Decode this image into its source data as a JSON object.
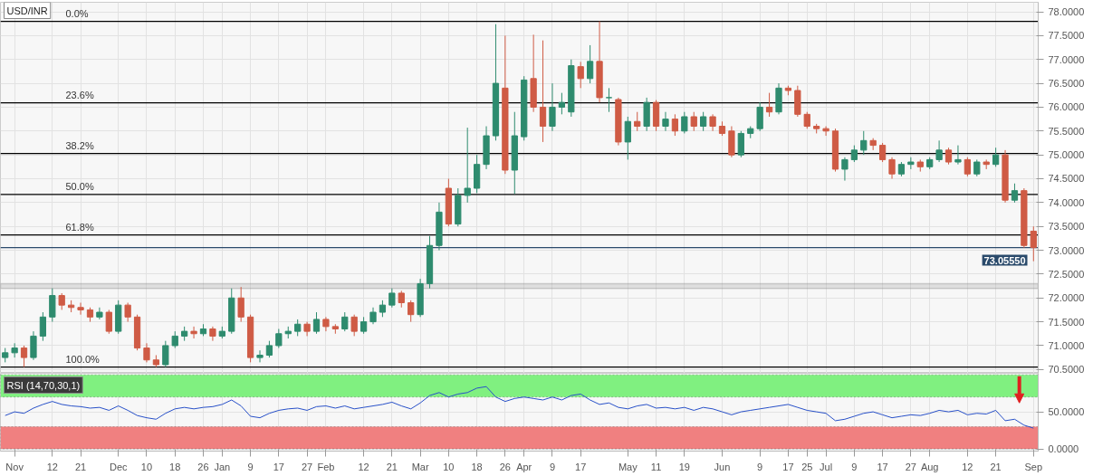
{
  "chart_data": [
    {
      "type": "candlestick",
      "title": "USD/INR",
      "categories": [
        null,
        "Nov",
        null,
        null,
        null,
        "12",
        null,
        null,
        "21",
        null,
        null,
        null,
        "Dec",
        null,
        null,
        "10",
        null,
        null,
        "18",
        null,
        null,
        "26",
        null,
        "Jan",
        null,
        null,
        "9",
        null,
        null,
        "17",
        null,
        null,
        "27",
        null,
        "Feb",
        null,
        null,
        null,
        "12",
        null,
        null,
        "21",
        null,
        null,
        "Mar",
        null,
        null,
        "10",
        null,
        null,
        "18",
        null,
        null,
        "26",
        null,
        "Apr",
        null,
        null,
        "9",
        null,
        null,
        "17",
        null,
        null,
        null,
        null,
        "May",
        null,
        null,
        "11",
        null,
        null,
        "19",
        null,
        null,
        null,
        "Jun",
        null,
        null,
        null,
        "9",
        null,
        null,
        "17",
        null,
        "25",
        null,
        "Jul",
        null,
        null,
        "9",
        null,
        null,
        "17",
        null,
        null,
        "27",
        null,
        "Aug",
        null,
        null,
        null,
        "12",
        null,
        null,
        "21",
        null,
        null,
        null,
        "Sep"
      ],
      "ohlc": [
        [
          70.75,
          70.95,
          70.65,
          70.85
        ],
        [
          70.85,
          71.05,
          70.75,
          70.95
        ],
        [
          70.95,
          71.0,
          70.55,
          70.75
        ],
        [
          70.75,
          71.3,
          70.7,
          71.2
        ],
        [
          71.2,
          71.7,
          71.1,
          71.6
        ],
        [
          71.6,
          72.2,
          71.5,
          72.05
        ],
        [
          72.05,
          72.1,
          71.75,
          71.85
        ],
        [
          71.85,
          71.95,
          71.7,
          71.8
        ],
        [
          71.8,
          71.9,
          71.65,
          71.75
        ],
        [
          71.75,
          71.8,
          71.5,
          71.6
        ],
        [
          71.6,
          71.8,
          71.55,
          71.7
        ],
        [
          71.7,
          71.75,
          71.25,
          71.3
        ],
        [
          71.3,
          71.95,
          71.25,
          71.85
        ],
        [
          71.85,
          71.9,
          71.5,
          71.6
        ],
        [
          71.6,
          71.65,
          70.9,
          70.95
        ],
        [
          70.95,
          71.05,
          70.65,
          70.7
        ],
        [
          70.7,
          70.8,
          70.55,
          70.6
        ],
        [
          70.6,
          71.1,
          70.55,
          71.0
        ],
        [
          71.0,
          71.3,
          70.95,
          71.2
        ],
        [
          71.2,
          71.4,
          71.1,
          71.3
        ],
        [
          71.3,
          71.4,
          71.15,
          71.25
        ],
        [
          71.25,
          71.45,
          71.2,
          71.35
        ],
        [
          71.35,
          71.4,
          71.1,
          71.2
        ],
        [
          71.2,
          71.4,
          71.15,
          71.3
        ],
        [
          71.3,
          72.2,
          71.25,
          72.0
        ],
        [
          72.0,
          72.23,
          71.5,
          71.6
        ],
        [
          71.6,
          71.65,
          70.65,
          70.75
        ],
        [
          70.75,
          70.9,
          70.65,
          70.8
        ],
        [
          70.8,
          71.1,
          70.75,
          71.0
        ],
        [
          71.0,
          71.35,
          70.95,
          71.25
        ],
        [
          71.25,
          71.4,
          71.15,
          71.3
        ],
        [
          71.3,
          71.55,
          71.2,
          71.45
        ],
        [
          71.45,
          71.5,
          71.2,
          71.3
        ],
        [
          71.3,
          71.7,
          71.25,
          71.55
        ],
        [
          71.55,
          71.6,
          71.3,
          71.4
        ],
        [
          71.4,
          71.45,
          71.25,
          71.35
        ],
        [
          71.35,
          71.7,
          71.3,
          71.6
        ],
        [
          71.6,
          71.65,
          71.2,
          71.3
        ],
        [
          71.3,
          71.6,
          71.25,
          71.5
        ],
        [
          71.5,
          71.8,
          71.45,
          71.7
        ],
        [
          71.7,
          71.95,
          71.6,
          71.85
        ],
        [
          71.85,
          72.2,
          71.8,
          72.1
        ],
        [
          72.1,
          72.15,
          71.8,
          71.9
        ],
        [
          71.9,
          71.95,
          71.5,
          71.65
        ],
        [
          71.65,
          72.4,
          71.6,
          72.3
        ],
        [
          72.3,
          73.3,
          72.2,
          73.1
        ],
        [
          73.1,
          74.0,
          73.0,
          73.8
        ],
        [
          74.3,
          74.5,
          73.5,
          73.55
        ],
        [
          73.55,
          74.3,
          73.5,
          74.15
        ],
        [
          74.15,
          75.57,
          74.0,
          74.3
        ],
        [
          74.3,
          75.0,
          74.2,
          74.8
        ],
        [
          74.8,
          75.6,
          74.7,
          75.4
        ],
        [
          75.4,
          77.74,
          75.3,
          76.5
        ],
        [
          76.4,
          77.5,
          74.6,
          74.68
        ],
        [
          74.68,
          75.9,
          74.18,
          75.4
        ],
        [
          75.38,
          76.65,
          75.3,
          76.57
        ],
        [
          76.6,
          77.52,
          75.9,
          76.0
        ],
        [
          76.0,
          77.4,
          75.27,
          75.6
        ],
        [
          75.6,
          76.5,
          75.5,
          76.0
        ],
        [
          76.0,
          76.3,
          75.85,
          76.1
        ],
        [
          75.9,
          77.0,
          75.8,
          76.87
        ],
        [
          76.85,
          76.95,
          76.4,
          76.6
        ],
        [
          76.6,
          77.3,
          76.5,
          76.96
        ],
        [
          76.96,
          77.8,
          76.1,
          76.2
        ],
        [
          76.2,
          76.4,
          75.9,
          76.2
        ],
        [
          76.16,
          76.2,
          75.2,
          75.27
        ],
        [
          75.27,
          75.8,
          74.9,
          75.7
        ],
        [
          75.7,
          75.9,
          75.5,
          75.6
        ],
        [
          75.6,
          76.2,
          75.5,
          76.1
        ],
        [
          76.1,
          76.15,
          75.5,
          75.6
        ],
        [
          75.6,
          75.9,
          75.5,
          75.75
        ],
        [
          75.75,
          75.85,
          75.4,
          75.5
        ],
        [
          75.5,
          75.9,
          75.45,
          75.8
        ],
        [
          75.8,
          75.9,
          75.5,
          75.6
        ],
        [
          75.6,
          75.9,
          75.5,
          75.8
        ],
        [
          75.8,
          75.85,
          75.5,
          75.6
        ],
        [
          75.6,
          75.7,
          75.4,
          75.45
        ],
        [
          75.5,
          75.6,
          74.95,
          75.0
        ],
        [
          75.0,
          75.5,
          74.95,
          75.45
        ],
        [
          75.45,
          75.6,
          75.35,
          75.55
        ],
        [
          75.55,
          76.1,
          75.5,
          76.0
        ],
        [
          76.0,
          76.3,
          75.8,
          75.9
        ],
        [
          75.9,
          76.5,
          75.85,
          76.4
        ],
        [
          76.4,
          76.45,
          76.25,
          76.35
        ],
        [
          76.35,
          76.45,
          75.8,
          75.85
        ],
        [
          75.85,
          75.9,
          75.55,
          75.6
        ],
        [
          75.6,
          75.65,
          75.45,
          75.55
        ],
        [
          75.55,
          75.6,
          75.4,
          75.5
        ],
        [
          75.5,
          75.55,
          74.65,
          74.7
        ],
        [
          74.7,
          74.95,
          74.46,
          74.9
        ],
        [
          74.9,
          75.2,
          74.85,
          75.1
        ],
        [
          75.1,
          75.5,
          75.0,
          75.3
        ],
        [
          75.3,
          75.35,
          75.1,
          75.2
        ],
        [
          75.2,
          75.25,
          74.85,
          74.9
        ],
        [
          74.9,
          74.95,
          74.5,
          74.6
        ],
        [
          74.6,
          74.85,
          74.55,
          74.8
        ],
        [
          74.8,
          74.95,
          74.7,
          74.85
        ],
        [
          74.85,
          74.9,
          74.65,
          74.75
        ],
        [
          74.75,
          74.95,
          74.7,
          74.9
        ],
        [
          74.9,
          75.3,
          74.85,
          75.1
        ],
        [
          75.1,
          75.15,
          74.8,
          74.85
        ],
        [
          74.85,
          75.2,
          74.8,
          74.9
        ],
        [
          74.9,
          74.95,
          74.55,
          74.6
        ],
        [
          74.6,
          74.9,
          74.55,
          74.85
        ],
        [
          74.85,
          74.9,
          74.7,
          74.8
        ],
        [
          74.8,
          75.15,
          74.75,
          75.0
        ],
        [
          75.0,
          75.1,
          74.0,
          74.05
        ],
        [
          74.05,
          74.4,
          74.0,
          74.25
        ],
        [
          74.25,
          74.3,
          73.05,
          73.1
        ],
        [
          73.4,
          73.5,
          72.77,
          73.0555
        ]
      ],
      "colors": [
        "#2e8b6e",
        "#2e8b6e",
        "#cf5b45",
        "#2e8b6e",
        "#2e8b6e",
        "#2e8b6e",
        "#cf5b45",
        "#cf5b45",
        "#cf5b45",
        "#cf5b45",
        "#2e8b6e",
        "#cf5b45",
        "#2e8b6e",
        "#cf5b45",
        "#cf5b45",
        "#cf5b45",
        "#cf5b45",
        "#2e8b6e",
        "#2e8b6e",
        "#2e8b6e",
        "#cf5b45",
        "#2e8b6e",
        "#cf5b45",
        "#2e8b6e",
        "#2e8b6e",
        "#cf5b45",
        "#cf5b45",
        "#2e8b6e",
        "#2e8b6e",
        "#2e8b6e",
        "#2e8b6e",
        "#2e8b6e",
        "#cf5b45",
        "#2e8b6e",
        "#cf5b45",
        "#cf5b45",
        "#2e8b6e",
        "#cf5b45",
        "#2e8b6e",
        "#2e8b6e",
        "#2e8b6e",
        "#2e8b6e",
        "#cf5b45",
        "#cf5b45",
        "#2e8b6e",
        "#2e8b6e",
        "#2e8b6e",
        "#cf5b45",
        "#2e8b6e",
        "#2e8b6e",
        "#2e8b6e",
        "#2e8b6e",
        "#2e8b6e",
        "#cf5b45",
        "#2e8b6e",
        "#2e8b6e",
        "#cf5b45",
        "#cf5b45",
        "#2e8b6e",
        "#2e8b6e",
        "#2e8b6e",
        "#cf5b45",
        "#2e8b6e",
        "#cf5b45",
        "#2e8b6e",
        "#cf5b45",
        "#2e8b6e",
        "#cf5b45",
        "#2e8b6e",
        "#cf5b45",
        "#2e8b6e",
        "#cf5b45",
        "#2e8b6e",
        "#cf5b45",
        "#2e8b6e",
        "#cf5b45",
        "#cf5b45",
        "#cf5b45",
        "#2e8b6e",
        "#2e8b6e",
        "#2e8b6e",
        "#cf5b45",
        "#2e8b6e",
        "#cf5b45",
        "#cf5b45",
        "#cf5b45",
        "#cf5b45",
        "#cf5b45",
        "#cf5b45",
        "#2e8b6e",
        "#2e8b6e",
        "#2e8b6e",
        "#cf5b45",
        "#cf5b45",
        "#cf5b45",
        "#2e8b6e",
        "#2e8b6e",
        "#cf5b45",
        "#2e8b6e",
        "#2e8b6e",
        "#cf5b45",
        "#2e8b6e",
        "#cf5b45",
        "#2e8b6e",
        "#cf5b45",
        "#2e8b6e",
        "#cf5b45",
        "#2e8b6e",
        "#cf5b45",
        "#cf5b45"
      ],
      "ylim": [
        70.42,
        78.2
      ],
      "yticks": [
        {
          "value": 70.5,
          "label": "70.5000"
        },
        {
          "value": 71,
          "label": "71.0000"
        },
        {
          "value": 71.5,
          "label": "71.5000"
        },
        {
          "value": 72,
          "label": "72.0000"
        },
        {
          "value": 72.5,
          "label": "72.5000"
        },
        {
          "value": 73,
          "label": "73.0000"
        },
        {
          "value": 73.5,
          "label": "73.5000"
        },
        {
          "value": 74,
          "label": "74.0000"
        },
        {
          "value": 74.5,
          "label": "74.5000"
        },
        {
          "value": 75,
          "label": "75.0000"
        },
        {
          "value": 75.5,
          "label": "75.5000"
        },
        {
          "value": 76,
          "label": "76.0000"
        },
        {
          "value": 76.5,
          "label": "76.5000"
        },
        {
          "value": 77,
          "label": "77.0000"
        },
        {
          "value": 77.5,
          "label": "77.5000"
        },
        {
          "value": 78,
          "label": "78.0000"
        }
      ],
      "ref_lines": [
        {
          "axis": "y",
          "value": 77.8,
          "color": "#000000"
        },
        {
          "axis": "y",
          "value": 76.09,
          "color": "#000000"
        },
        {
          "axis": "y",
          "value": 75.03,
          "color": "#000000"
        },
        {
          "axis": "y",
          "value": 74.17,
          "color": "#000000"
        },
        {
          "axis": "y",
          "value": 73.32,
          "color": "#000000"
        },
        {
          "axis": "y",
          "value": 70.55,
          "color": "#000000"
        },
        {
          "axis": "y",
          "value": 73.0555,
          "label": "73.05550",
          "color": "#2a4a6b"
        }
      ],
      "annotations": [
        {
          "text": "0.0%",
          "y": 77.8
        },
        {
          "text": "23.6%",
          "y": 76.09
        },
        {
          "text": "38.2%",
          "y": 75.03
        },
        {
          "text": "50.0%",
          "y": 74.17
        },
        {
          "text": "61.8%",
          "y": 73.32
        },
        {
          "text": "100.0%",
          "y": 70.55
        }
      ],
      "bands": [
        {
          "axis": "y",
          "from": 72.2,
          "to": 72.3,
          "color": "#b0b0b0"
        }
      ],
      "grid": true,
      "tick_labels": "y"
    },
    {
      "type": "line",
      "title": "RSI (14,70,30,1)",
      "series": [
        {
          "color": "#2850c8",
          "values": [
            45,
            50,
            48,
            55,
            60,
            64,
            60,
            58,
            57,
            55,
            56,
            52,
            58,
            52,
            45,
            42,
            40,
            48,
            54,
            56,
            54,
            56,
            57,
            60,
            66,
            58,
            44,
            42,
            48,
            52,
            54,
            55,
            52,
            57,
            58,
            55,
            58,
            54,
            56,
            58,
            60,
            63,
            58,
            54,
            62,
            72,
            76,
            70,
            74,
            76,
            82,
            84,
            70,
            64,
            68,
            70,
            68,
            66,
            70,
            66,
            72,
            74,
            66,
            60,
            62,
            56,
            54,
            58,
            60,
            55,
            56,
            54,
            56,
            52,
            56,
            54,
            50,
            46,
            50,
            52,
            54,
            56,
            58,
            60,
            56,
            52,
            50,
            48,
            38,
            40,
            44,
            48,
            50,
            46,
            42,
            44,
            46,
            45,
            48,
            52,
            50,
            52,
            46,
            48,
            47,
            52,
            38,
            40,
            32,
            28
          ]
        }
      ],
      "ylim": [
        -3,
        102
      ],
      "yticks": [
        {
          "value": 0,
          "label": "0.0000"
        },
        {
          "value": 50,
          "label": "50.0000"
        }
      ],
      "bands": [
        {
          "axis": "y",
          "from": 70,
          "to": 100,
          "color": "#80f080"
        },
        {
          "axis": "y",
          "from": 0,
          "to": 30,
          "color": "#f08080"
        }
      ],
      "grid": true
    }
  ]
}
